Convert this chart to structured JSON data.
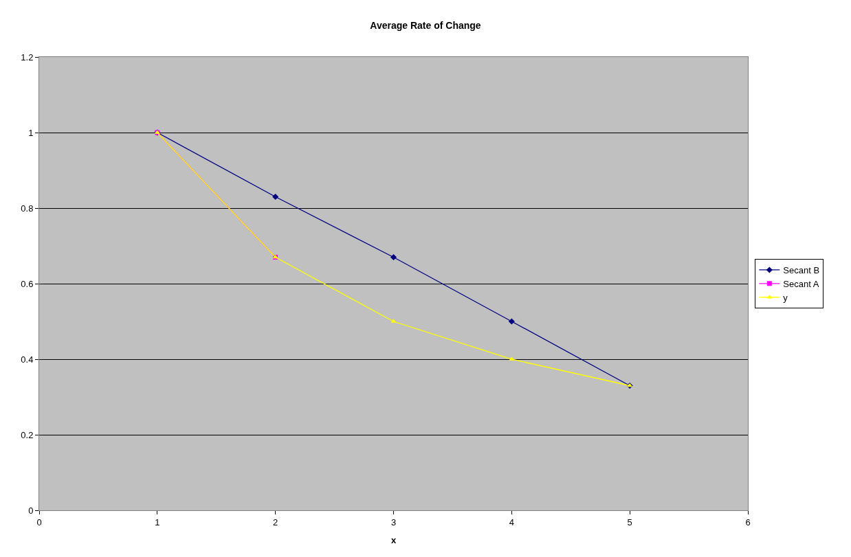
{
  "chart_data": {
    "type": "line",
    "title": "Average Rate of Change",
    "xlabel": "x",
    "x": [
      1,
      2,
      3,
      4,
      5
    ],
    "series": [
      {
        "name": "Secant B",
        "color": "#000080",
        "marker": "diamond",
        "values": [
          1,
          0.83,
          0.67,
          0.5,
          0.33
        ]
      },
      {
        "name": "Secant A",
        "color": "#ff00ff",
        "marker": "square",
        "x": [
          1,
          2
        ],
        "values": [
          1,
          0.67
        ]
      },
      {
        "name": "y",
        "color": "#ffff00",
        "marker": "triangle",
        "values": [
          1,
          0.67,
          0.5,
          0.4,
          0.33
        ]
      }
    ],
    "xlim": [
      0,
      6
    ],
    "xticks": [
      0,
      1,
      2,
      3,
      4,
      5,
      6
    ],
    "ylim": [
      0,
      1.2
    ],
    "yticks": [
      0,
      0.2,
      0.4,
      0.6,
      0.8,
      1,
      1.2
    ],
    "grid": "y",
    "legend": "right",
    "line_style": "solid"
  }
}
